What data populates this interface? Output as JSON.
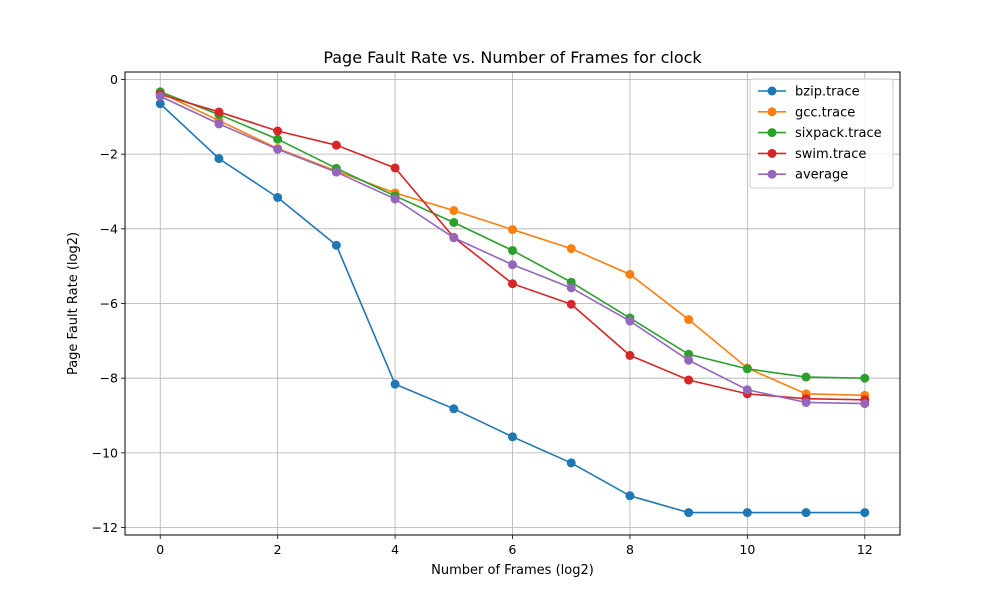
{
  "chart_data": {
    "type": "line",
    "title": "Page Fault Rate vs. Number of Frames for clock",
    "xlabel": "Number of Frames (log2)",
    "ylabel": "Page Fault Rate (log2)",
    "xlim": [
      -0.6,
      12.6
    ],
    "ylim": [
      -12.2,
      0.2
    ],
    "xticks": [
      0,
      2,
      4,
      6,
      8,
      10,
      12
    ],
    "yticks": [
      0,
      -2,
      -4,
      -6,
      -8,
      -10,
      -12
    ],
    "xtick_labels": [
      "0",
      "2",
      "4",
      "6",
      "8",
      "10",
      "12"
    ],
    "ytick_labels": [
      "0",
      "−2",
      "−4",
      "−6",
      "−8",
      "−10",
      "−12"
    ],
    "grid": true,
    "legend_position": "top-right",
    "x": [
      0,
      1,
      2,
      3,
      4,
      5,
      6,
      7,
      8,
      9,
      10,
      11,
      12
    ],
    "series": [
      {
        "name": "bzip.trace",
        "color": "#1f77b4",
        "values": [
          -0.65,
          -2.12,
          -3.16,
          -4.44,
          -8.16,
          -8.82,
          -9.57,
          -10.27,
          -11.15,
          -11.6,
          -11.6,
          -11.6,
          -11.6
        ]
      },
      {
        "name": "gcc.trace",
        "color": "#ff7f0e",
        "values": [
          -0.35,
          -1.1,
          -1.85,
          -2.45,
          -3.04,
          -3.51,
          -4.02,
          -4.53,
          -5.22,
          -6.43,
          -7.73,
          -8.42,
          -8.46
        ]
      },
      {
        "name": "sixpack.trace",
        "color": "#2ca02c",
        "values": [
          -0.33,
          -0.94,
          -1.6,
          -2.38,
          -3.12,
          -3.83,
          -4.58,
          -5.43,
          -6.39,
          -7.36,
          -7.75,
          -7.97,
          -8.0
        ]
      },
      {
        "name": "swim.trace",
        "color": "#d62728",
        "values": [
          -0.4,
          -0.87,
          -1.38,
          -1.76,
          -2.37,
          -4.23,
          -5.47,
          -6.02,
          -7.39,
          -8.05,
          -8.42,
          -8.55,
          -8.58
        ]
      },
      {
        "name": "average",
        "color": "#9467bd",
        "values": [
          -0.45,
          -1.19,
          -1.87,
          -2.48,
          -3.2,
          -4.24,
          -4.96,
          -5.58,
          -6.47,
          -7.52,
          -8.31,
          -8.65,
          -8.68
        ]
      }
    ]
  }
}
